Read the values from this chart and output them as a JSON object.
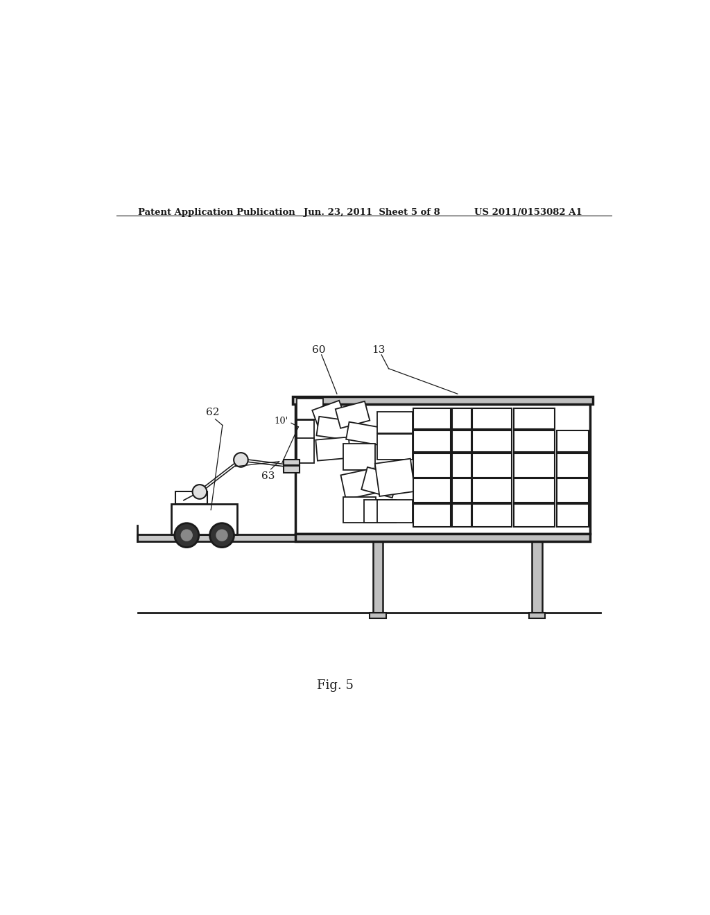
{
  "bg_color": "#ffffff",
  "lc": "#1a1a1a",
  "header_left": "Patent Application Publication",
  "header_mid": "Jun. 23, 2011  Sheet 5 of 8",
  "header_right": "US 2011/0153082 A1",
  "fig_label": "Fig. 5",
  "packages_scattered": [
    [
      0.378,
      0.578,
      0.048,
      0.038,
      0
    ],
    [
      0.378,
      0.538,
      0.032,
      0.038,
      0
    ],
    [
      0.378,
      0.498,
      0.032,
      0.046,
      0
    ],
    [
      0.41,
      0.572,
      0.052,
      0.032,
      20
    ],
    [
      0.416,
      0.544,
      0.058,
      0.035,
      -8
    ],
    [
      0.414,
      0.505,
      0.06,
      0.038,
      5
    ],
    [
      0.452,
      0.568,
      0.055,
      0.036,
      15
    ],
    [
      0.47,
      0.536,
      0.06,
      0.032,
      -10
    ],
    [
      0.462,
      0.486,
      0.058,
      0.048,
      0
    ],
    [
      0.462,
      0.438,
      0.06,
      0.045,
      12
    ],
    [
      0.462,
      0.39,
      0.06,
      0.046,
      0
    ],
    [
      0.5,
      0.442,
      0.058,
      0.042,
      -15
    ],
    [
      0.5,
      0.39,
      0.058,
      0.042,
      0
    ],
    [
      0.524,
      0.553,
      0.065,
      0.038,
      0
    ],
    [
      0.524,
      0.505,
      0.065,
      0.046,
      0
    ],
    [
      0.524,
      0.442,
      0.065,
      0.06,
      8
    ],
    [
      0.524,
      0.39,
      0.065,
      0.042,
      0
    ]
  ],
  "packages_ordered": [
    [
      0.59,
      0.56,
      0.068,
      0.038,
      0
    ],
    [
      0.59,
      0.518,
      0.068,
      0.04,
      0
    ],
    [
      0.59,
      0.472,
      0.068,
      0.044,
      0
    ],
    [
      0.59,
      0.426,
      0.068,
      0.044,
      0
    ],
    [
      0.59,
      0.382,
      0.068,
      0.042,
      0
    ],
    [
      0.66,
      0.56,
      0.035,
      0.038,
      0
    ],
    [
      0.66,
      0.518,
      0.035,
      0.04,
      0
    ],
    [
      0.66,
      0.472,
      0.035,
      0.044,
      0
    ],
    [
      0.66,
      0.426,
      0.035,
      0.044,
      0
    ],
    [
      0.66,
      0.382,
      0.035,
      0.042,
      0
    ],
    [
      0.697,
      0.56,
      0.072,
      0.038,
      0
    ],
    [
      0.697,
      0.518,
      0.072,
      0.04,
      0
    ],
    [
      0.697,
      0.472,
      0.072,
      0.044,
      0
    ],
    [
      0.697,
      0.426,
      0.072,
      0.044,
      0
    ],
    [
      0.697,
      0.382,
      0.072,
      0.042,
      0
    ],
    [
      0.772,
      0.56,
      0.075,
      0.038,
      0
    ],
    [
      0.772,
      0.518,
      0.075,
      0.04,
      0
    ],
    [
      0.772,
      0.472,
      0.075,
      0.044,
      0
    ],
    [
      0.772,
      0.426,
      0.075,
      0.044,
      0
    ],
    [
      0.772,
      0.382,
      0.075,
      0.042,
      0
    ],
    [
      0.85,
      0.518,
      0.058,
      0.04,
      0
    ],
    [
      0.85,
      0.472,
      0.058,
      0.044,
      0
    ],
    [
      0.85,
      0.426,
      0.058,
      0.044,
      0
    ],
    [
      0.85,
      0.382,
      0.058,
      0.042,
      0
    ]
  ]
}
